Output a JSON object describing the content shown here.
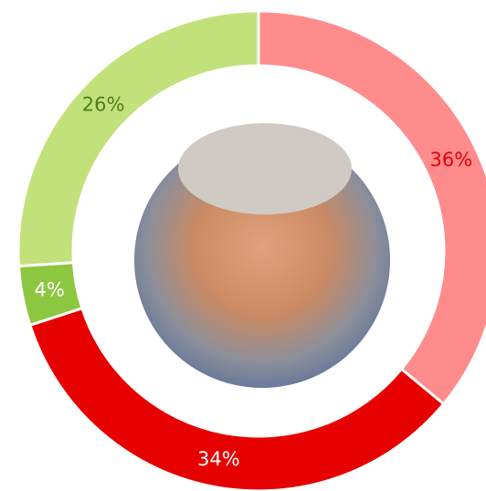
{
  "chart_data": {
    "type": "pie",
    "donut": true,
    "values": [
      36,
      34,
      4,
      26
    ],
    "value_labels": [
      "36%",
      "34%",
      "4%",
      "26%"
    ],
    "colors": [
      "#ff8c8c",
      "#e60000",
      "#8dc63f",
      "#c3e17a"
    ],
    "label_colors": [
      "#e60000",
      "#ffffff",
      "#ffffff",
      "#4f7d1e"
    ]
  }
}
